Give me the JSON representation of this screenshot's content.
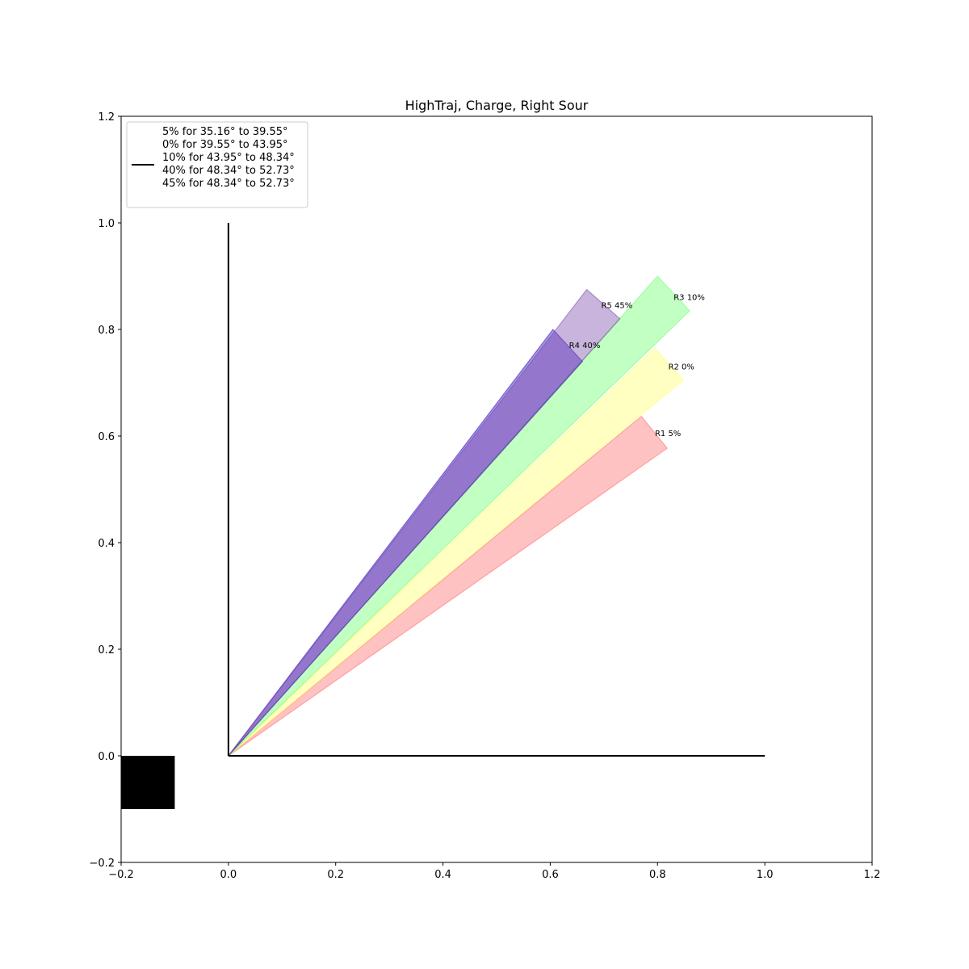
{
  "chart_data": {
    "type": "area",
    "title": "HighTraj, Charge, Right Sour",
    "xlim": [
      -0.2,
      1.2
    ],
    "ylim": [
      -0.2,
      1.2
    ],
    "xticks": [
      -0.2,
      0.0,
      0.2,
      0.4,
      0.6,
      0.8,
      1.0,
      1.2
    ],
    "yticks": [
      -0.2,
      0.0,
      0.2,
      0.4,
      0.6,
      0.8,
      1.0,
      1.2
    ],
    "xtick_labels": [
      "−0.2",
      "0.0",
      "0.2",
      "0.4",
      "0.6",
      "0.8",
      "1.0",
      "1.2"
    ],
    "ytick_labels": [
      "−0.2",
      "0.0",
      "0.2",
      "0.4",
      "0.6",
      "0.8",
      "1.0",
      "1.2"
    ],
    "grid": false,
    "legend_position": "top-left",
    "legend": {
      "lines": [
        "5% for 35.16° to 39.55°",
        "0% for 39.55° to 43.95°",
        "10% for 43.95° to 48.34°",
        "40% for 48.34° to 52.73°",
        "45% for 48.34° to 52.73°"
      ],
      "line_color": "#000000"
    },
    "axes_lines": [
      {
        "x": [
          0,
          1
        ],
        "y": [
          0,
          0
        ]
      },
      {
        "x": [
          0,
          0
        ],
        "y": [
          0,
          1
        ]
      }
    ],
    "source_box": {
      "x0": -0.2,
      "x1": -0.1,
      "y0": -0.1,
      "y1": 0.0,
      "color": "#000000"
    },
    "wedges": [
      {
        "label": "R1 5%",
        "color": "#ff6666",
        "points": [
          [
            0,
            0
          ],
          [
            0.77,
            0.637
          ],
          [
            0.818,
            0.577
          ]
        ],
        "label_xy": [
          0.795,
          0.6
        ]
      },
      {
        "label": "R2 0%",
        "color": "#ffff66",
        "points": [
          [
            0,
            0
          ],
          [
            0.795,
            0.765
          ],
          [
            0.848,
            0.705
          ]
        ],
        "label_xy": [
          0.82,
          0.725
        ]
      },
      {
        "label": "R3 10%",
        "color": "#66ff66",
        "points": [
          [
            0,
            0
          ],
          [
            0.8,
            0.9
          ],
          [
            0.86,
            0.835
          ]
        ],
        "label_xy": [
          0.83,
          0.855
        ]
      },
      {
        "label": "R4 40%",
        "color": "#2200bb",
        "points": [
          [
            0,
            0
          ],
          [
            0.605,
            0.8
          ],
          [
            0.66,
            0.74
          ]
        ],
        "label_xy": [
          0.635,
          0.765
        ]
      },
      {
        "label": "R5 45%",
        "color": "#7744aa",
        "points": [
          [
            0,
            0
          ],
          [
            0.668,
            0.875
          ],
          [
            0.73,
            0.82
          ]
        ],
        "label_xy": [
          0.695,
          0.84
        ]
      }
    ]
  }
}
